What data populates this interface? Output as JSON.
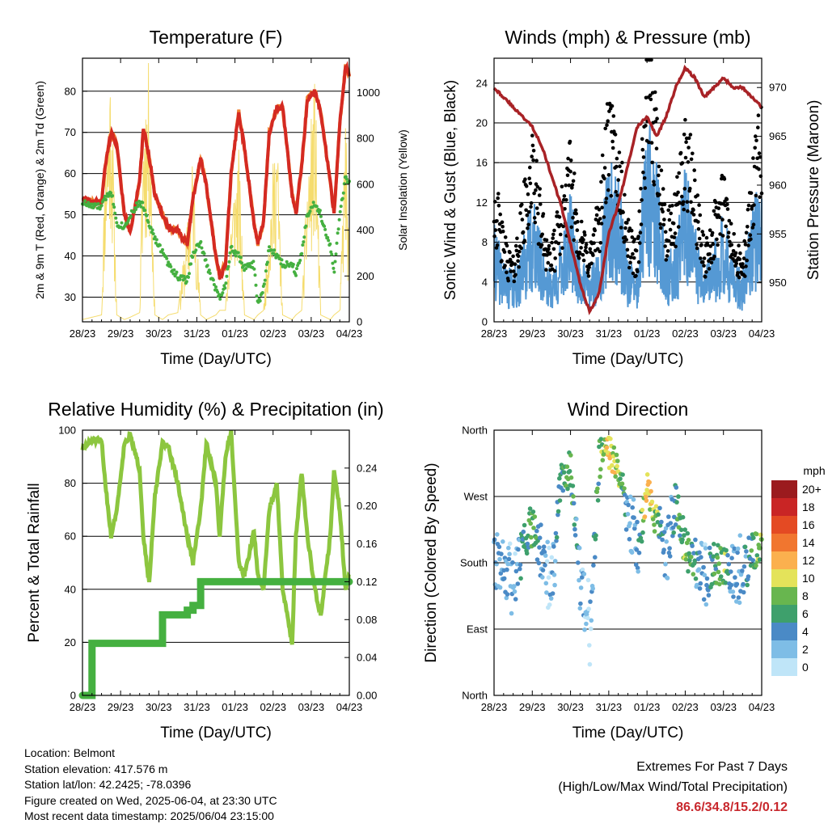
{
  "colors": {
    "temp2m": "#d42a22",
    "temp9m": "#f08030",
    "dewpoint": "#45b040",
    "solar": "#f5dc6e",
    "wind": "#5599d4",
    "gust": "#000000",
    "pressure": "#a82226",
    "rh": "#8cc63f",
    "precip": "#45b040",
    "extremes": "#c8282d"
  },
  "x_ticks": [
    "28/23",
    "29/23",
    "30/23",
    "31/23",
    "01/23",
    "02/23",
    "03/23",
    "04/23"
  ],
  "charts": [
    {
      "id": "temperature",
      "type": "line",
      "title": "Temperature (F)",
      "xlabel": "Time (Day/UTC)",
      "ylabel_left": "2m & 9m T (Red, Orange) & 2m Td (Green)",
      "ylabel_right": "Solar Insolation (Yellow)",
      "ylim_left": [
        24,
        88
      ],
      "ylim_right": [
        0,
        1150
      ],
      "yticks_left": [
        30,
        40,
        50,
        60,
        70,
        80
      ],
      "yticks_right": [
        0,
        200,
        400,
        600,
        800,
        1000
      ],
      "x": [
        0,
        0.25,
        0.5,
        0.6,
        0.75,
        0.9,
        1.1,
        1.25,
        1.5,
        1.6,
        1.75,
        1.9,
        2.1,
        2.25,
        2.5,
        2.75,
        2.9,
        3.1,
        3.25,
        3.5,
        3.6,
        3.75,
        3.9,
        4.1,
        4.25,
        4.5,
        4.6,
        4.75,
        4.9,
        5.1,
        5.25,
        5.5,
        5.6,
        5.75,
        5.9,
        6.1,
        6.25,
        6.5,
        6.6,
        6.75,
        6.9,
        7.0
      ],
      "series": [
        {
          "key": "temp2m",
          "values": [
            54,
            53,
            53,
            62,
            70,
            67,
            50,
            46,
            58,
            71,
            64,
            55,
            50,
            47,
            46,
            43,
            54,
            64,
            57,
            40,
            35,
            38,
            60,
            75,
            66,
            48,
            43,
            48,
            70,
            76,
            76,
            55,
            50,
            62,
            78,
            80,
            75,
            58,
            50,
            72,
            86,
            84
          ]
        },
        {
          "key": "dewpoint",
          "values": [
            53,
            52,
            52,
            54,
            56,
            48,
            47,
            50,
            53,
            52,
            48,
            44,
            41,
            38,
            35,
            34,
            41,
            43,
            38,
            32,
            30,
            33,
            42,
            40,
            37,
            38,
            28,
            32,
            42,
            40,
            38,
            38,
            36,
            41,
            50,
            53,
            50,
            42,
            36,
            50,
            59,
            58
          ]
        },
        {
          "key": "solar",
          "values": [
            10,
            20,
            30,
            750,
            1100,
            30,
            10,
            20,
            40,
            900,
            1050,
            30,
            10,
            30,
            40,
            400,
            700,
            30,
            10,
            30,
            50,
            50,
            480,
            700,
            30,
            10,
            30,
            50,
            440,
            830,
            30,
            10,
            30,
            50,
            620,
            1000,
            30,
            10,
            30,
            50,
            880,
            200
          ]
        }
      ]
    },
    {
      "id": "winds",
      "type": "scatter",
      "title": "Winds (mph) & Pressure (mb)",
      "xlabel": "Time (Day/UTC)",
      "ylabel_left": "Sonic Wind & Gust (Blue, Black)",
      "ylabel_right": "Station Pressure (Maroon)",
      "ylim_left": [
        0,
        26.5
      ],
      "ylim_right": [
        946,
        973
      ],
      "yticks_left": [
        0,
        4,
        8,
        12,
        16,
        20,
        24
      ],
      "yticks_right": [
        950,
        955,
        960,
        965,
        970
      ],
      "x": [
        0,
        0.25,
        0.5,
        0.75,
        1,
        1.25,
        1.5,
        1.75,
        2,
        2.25,
        2.5,
        2.75,
        3,
        3.25,
        3.5,
        3.75,
        4,
        4.25,
        4.5,
        4.75,
        5,
        5.25,
        5.5,
        5.75,
        6,
        6.25,
        6.5,
        6.75,
        7
      ],
      "series": [
        {
          "key": "gust",
          "values": [
            12,
            7,
            5,
            10,
            15,
            9,
            6,
            10,
            14,
            8,
            6,
            10,
            18,
            15,
            8,
            6,
            22,
            18,
            8,
            10,
            17,
            12,
            6,
            9,
            12,
            7,
            5,
            12,
            18
          ]
        },
        {
          "key": "wind",
          "values": [
            6,
            4,
            3,
            5,
            8,
            5,
            3,
            5,
            8,
            4,
            3,
            5,
            10,
            9,
            4,
            3,
            13,
            10,
            4,
            5,
            10,
            6,
            3,
            5,
            7,
            4,
            3,
            7,
            10
          ]
        },
        {
          "key": "pressure",
          "values": [
            970,
            969,
            968,
            967,
            966,
            964,
            961,
            958,
            954,
            950,
            947,
            949,
            955,
            958,
            962,
            966,
            967,
            965,
            967,
            970,
            972,
            971,
            969,
            970,
            971,
            970,
            970,
            969,
            968
          ]
        }
      ]
    },
    {
      "id": "humidity",
      "type": "line",
      "title": "Relative Humidity (%) & Precipitation (in)",
      "xlabel": "Time (Day/UTC)",
      "ylabel_left": "Percent & Total Rainfall",
      "ylim_left": [
        0,
        100
      ],
      "ylim_right": [
        0,
        0.28
      ],
      "yticks_left": [
        0,
        20,
        40,
        60,
        80,
        100
      ],
      "yticks_right": [
        0.0,
        0.04,
        0.08,
        0.12,
        0.16,
        0.2,
        0.24
      ],
      "ytick_labels_right": [
        "0.00",
        "0.04",
        "0.08",
        "0.12",
        "0.16",
        "0.20",
        "0.24"
      ],
      "x": [
        0,
        0.25,
        0.5,
        0.6,
        0.75,
        0.9,
        1.1,
        1.25,
        1.5,
        1.6,
        1.75,
        1.9,
        2.1,
        2.25,
        2.5,
        2.75,
        2.9,
        3.1,
        3.25,
        3.5,
        3.6,
        3.75,
        3.9,
        4.1,
        4.25,
        4.5,
        4.6,
        4.75,
        4.9,
        5.1,
        5.25,
        5.5,
        5.6,
        5.75,
        5.9,
        6.1,
        6.25,
        6.5,
        6.6,
        6.75,
        6.9,
        7.0
      ],
      "series": [
        {
          "key": "rh",
          "values": [
            93,
            96,
            96,
            80,
            60,
            70,
            95,
            98,
            85,
            60,
            42,
            75,
            95,
            94,
            80,
            60,
            50,
            70,
            95,
            80,
            60,
            90,
            100,
            50,
            45,
            62,
            45,
            40,
            70,
            80,
            40,
            20,
            60,
            84,
            60,
            40,
            30,
            60,
            85,
            70,
            40,
            45
          ]
        },
        {
          "key": "precip",
          "values": [
            0,
            0.055,
            0.055,
            0.055,
            0.055,
            0.055,
            0.055,
            0.055,
            0.055,
            0.055,
            0.055,
            0.055,
            0.085,
            0.085,
            0.085,
            0.09,
            0.095,
            0.12,
            0.12,
            0.12,
            0.12,
            0.12,
            0.12,
            0.12,
            0.12,
            0.12,
            0.12,
            0.12,
            0.12,
            0.12,
            0.12,
            0.12,
            0.12,
            0.12,
            0.12,
            0.12,
            0.12,
            0.12,
            0.12,
            0.12,
            0.12,
            0.12
          ]
        }
      ]
    },
    {
      "id": "direction",
      "type": "scatter",
      "title": "Wind Direction",
      "xlabel": "Time (Day/UTC)",
      "ylabel_left": "Direction (Colored By Speed)",
      "ylim_left": [
        0,
        360
      ],
      "yticks_left": [
        0,
        90,
        180,
        270,
        360
      ],
      "ytick_labels_left": [
        "North",
        "East",
        "South",
        "West",
        "North"
      ],
      "colorbar_title": "mph",
      "colorbar_labels": [
        "0",
        "2",
        "4",
        "6",
        "8",
        "10",
        "12",
        "14",
        "16",
        "18",
        "20+"
      ],
      "colorbar_colors": [
        "#bfe5f8",
        "#7ebde6",
        "#4a8ac6",
        "#3ea06c",
        "#68b64f",
        "#e4e35a",
        "#fbb04e",
        "#f1762f",
        "#e44a23",
        "#c92525",
        "#9b1b1e"
      ],
      "x": [
        0,
        0.25,
        0.5,
        0.75,
        1,
        1.25,
        1.5,
        1.75,
        2,
        2.25,
        2.5,
        2.75,
        3,
        3.25,
        3.5,
        3.75,
        4,
        4.25,
        4.5,
        4.75,
        5,
        5.25,
        5.5,
        5.75,
        6,
        6.25,
        6.5,
        6.75,
        7
      ],
      "direction": [
        180,
        170,
        150,
        200,
        230,
        190,
        140,
        300,
        310,
        150,
        100,
        320,
        330,
        300,
        250,
        200,
        280,
        240,
        190,
        260,
        200,
        180,
        160,
        180,
        175,
        170,
        170,
        190,
        200
      ],
      "speed": [
        3,
        3,
        2,
        5,
        7,
        3,
        1,
        6,
        7,
        2,
        1,
        7,
        11,
        9,
        3,
        3,
        12,
        8,
        2,
        5,
        8,
        5,
        2,
        6,
        8,
        3,
        3,
        6,
        9
      ]
    }
  ],
  "info": {
    "location": "Location: Belmont",
    "elevation": "Station elevation: 417.576 m",
    "latlon": "Station lat/lon: 42.2425; -78.0396",
    "created": "Figure created on Wed, 2025-06-04, at 23:30 UTC",
    "recent": "Most recent data timestamp: 2025/06/04 23:15:00"
  },
  "extremes": {
    "line1": "Extremes For Past 7 Days",
    "line2": "(High/Low/Max Wind/Total Precipitation)",
    "values": "86.6/34.8/15.2/0.12"
  }
}
